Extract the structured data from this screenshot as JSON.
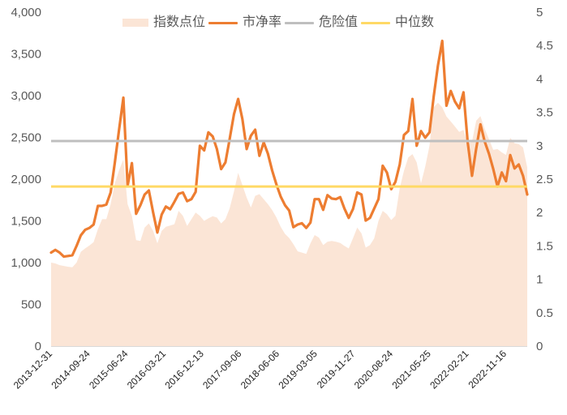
{
  "colors": {
    "index_area": "#FBE5D6",
    "pb_line": "#ED7D31",
    "danger_line": "#BFBFBF",
    "median_line": "#FFD966",
    "axis_text": "#595959",
    "axis_line": "#D9D9D9",
    "x_label_text": "#222222"
  },
  "legend": {
    "items": [
      {
        "label": "指数点位",
        "kind": "area",
        "color": "#FBE5D6"
      },
      {
        "label": "市净率",
        "kind": "line",
        "color": "#ED7D31"
      },
      {
        "label": "危险值",
        "kind": "line",
        "color": "#BFBFBF"
      },
      {
        "label": "中位数",
        "kind": "line",
        "color": "#FFD966"
      }
    ]
  },
  "chart_data": {
    "type": "line",
    "title": "",
    "xlabel": "",
    "ylabel": "",
    "legend_position": "top",
    "grid": false,
    "y_left": {
      "min": 0,
      "max": 4000,
      "ticks": [
        0,
        500,
        1000,
        1500,
        2000,
        2500,
        3000,
        3500,
        4000
      ],
      "tick_labels": [
        "0",
        "500",
        "1,000",
        "1,500",
        "2,000",
        "2,500",
        "3,000",
        "3,500",
        "4,000"
      ]
    },
    "y_right": {
      "min": 0,
      "max": 5,
      "ticks": [
        0,
        0.5,
        1,
        1.5,
        2,
        2.5,
        3,
        3.5,
        4,
        4.5,
        5
      ],
      "tick_labels": [
        "0",
        "0.5",
        "1",
        "1.5",
        "2",
        "2.5",
        "3",
        "3.5",
        "4",
        "4.5",
        "5"
      ]
    },
    "x_tick_labels": [
      "2013-12-31",
      "2014-09-24",
      "2015-06-24",
      "2016-03-21",
      "2016-12-13",
      "2017-09-06",
      "2018-06-06",
      "2019-03-05",
      "2019-11-27",
      "2020-08-24",
      "2021-05-25",
      "2022-02-21",
      "2022-11-16"
    ],
    "categories": [
      "2013-12",
      "2014-01",
      "2014-02",
      "2014-03",
      "2014-04",
      "2014-05",
      "2014-06",
      "2014-07",
      "2014-08",
      "2014-09",
      "2014-10",
      "2014-11",
      "2014-12",
      "2015-01",
      "2015-02",
      "2015-03",
      "2015-04",
      "2015-05",
      "2015-06",
      "2015-07",
      "2015-08",
      "2015-09",
      "2015-10",
      "2015-11",
      "2015-12",
      "2016-01",
      "2016-02",
      "2016-03",
      "2016-04",
      "2016-05",
      "2016-06",
      "2016-07",
      "2016-08",
      "2016-09",
      "2016-10",
      "2016-11",
      "2016-12",
      "2017-01",
      "2017-02",
      "2017-03",
      "2017-04",
      "2017-05",
      "2017-06",
      "2017-07",
      "2017-08",
      "2017-09",
      "2017-10",
      "2017-11",
      "2017-12",
      "2018-01",
      "2018-02",
      "2018-03",
      "2018-04",
      "2018-05",
      "2018-06",
      "2018-07",
      "2018-08",
      "2018-09",
      "2018-10",
      "2018-11",
      "2018-12",
      "2019-01",
      "2019-02",
      "2019-03",
      "2019-04",
      "2019-05",
      "2019-06",
      "2019-07",
      "2019-08",
      "2019-09",
      "2019-10",
      "2019-11",
      "2019-12",
      "2020-01",
      "2020-02",
      "2020-03",
      "2020-04",
      "2020-05",
      "2020-06",
      "2020-07",
      "2020-08",
      "2020-09",
      "2020-10",
      "2020-11",
      "2020-12",
      "2021-01",
      "2021-02",
      "2021-03",
      "2021-04",
      "2021-05",
      "2021-06",
      "2021-07",
      "2021-08",
      "2021-09",
      "2021-10",
      "2021-11",
      "2021-12",
      "2022-01",
      "2022-02",
      "2022-03",
      "2022-04",
      "2022-05",
      "2022-06",
      "2022-07",
      "2022-08",
      "2022-09",
      "2022-10",
      "2022-11",
      "2022-12",
      "2023-01",
      "2023-02",
      "2023-03",
      "2023-04"
    ],
    "series": [
      {
        "name": "指数点位",
        "type": "area",
        "axis": "left",
        "color": "#FBE5D6",
        "values": [
          1000,
          990,
          970,
          960,
          950,
          945,
          1000,
          1130,
          1170,
          1205,
          1245,
          1400,
          1520,
          1520,
          1700,
          1950,
          2110,
          2236,
          1700,
          1560,
          1270,
          1260,
          1420,
          1470,
          1380,
          1230,
          1380,
          1430,
          1445,
          1460,
          1620,
          1560,
          1440,
          1520,
          1600,
          1560,
          1500,
          1530,
          1555,
          1540,
          1470,
          1520,
          1650,
          1850,
          2075,
          1930,
          1780,
          1660,
          1800,
          1820,
          1760,
          1700,
          1630,
          1540,
          1430,
          1345,
          1295,
          1220,
          1135,
          1120,
          1105,
          1230,
          1330,
          1300,
          1210,
          1250,
          1260,
          1250,
          1235,
          1200,
          1170,
          1290,
          1420,
          1350,
          1180,
          1210,
          1290,
          1500,
          1620,
          1580,
          1510,
          1560,
          1890,
          2100,
          2260,
          2300,
          2200,
          1950,
          2150,
          2400,
          2860,
          2916,
          2860,
          2750,
          2690,
          2630,
          2565,
          2590,
          2420,
          2450,
          2700,
          2754,
          2600,
          2480,
          2350,
          2360,
          2320,
          2290,
          2495,
          2430,
          2420,
          2380,
          2140
        ]
      },
      {
        "name": "市净率",
        "type": "line",
        "axis": "right",
        "color": "#ED7D31",
        "values": [
          1.4,
          1.44,
          1.4,
          1.34,
          1.35,
          1.36,
          1.5,
          1.66,
          1.74,
          1.77,
          1.82,
          2.1,
          2.1,
          2.12,
          2.3,
          2.75,
          3.25,
          3.72,
          2.4,
          2.74,
          1.98,
          2.11,
          2.27,
          2.33,
          2.0,
          1.7,
          1.97,
          2.09,
          2.05,
          2.16,
          2.28,
          2.3,
          2.17,
          2.2,
          2.31,
          3.0,
          2.93,
          3.2,
          3.14,
          2.95,
          2.65,
          2.75,
          3.1,
          3.47,
          3.7,
          3.4,
          2.95,
          3.15,
          3.24,
          2.85,
          3.05,
          2.88,
          2.63,
          2.42,
          2.24,
          2.11,
          2.03,
          1.78,
          1.82,
          1.84,
          1.77,
          1.85,
          2.2,
          2.2,
          2.04,
          2.26,
          2.21,
          2.2,
          2.23,
          2.06,
          1.92,
          2.05,
          2.3,
          2.27,
          1.88,
          1.92,
          2.06,
          2.2,
          2.7,
          2.6,
          2.35,
          2.46,
          2.72,
          3.16,
          3.22,
          3.7,
          3.0,
          3.22,
          3.12,
          3.2,
          3.74,
          4.2,
          4.57,
          3.6,
          3.82,
          3.66,
          3.56,
          3.8,
          3.05,
          2.55,
          2.96,
          3.32,
          3.06,
          2.88,
          2.65,
          2.39,
          2.6,
          2.47,
          2.86,
          2.66,
          2.72,
          2.55,
          2.27
        ]
      },
      {
        "name": "危险值",
        "type": "line",
        "axis": "right",
        "color": "#BFBFBF",
        "constant": 3.07
      },
      {
        "name": "中位数",
        "type": "line",
        "axis": "right",
        "color": "#FFD966",
        "constant": 2.39
      }
    ]
  }
}
